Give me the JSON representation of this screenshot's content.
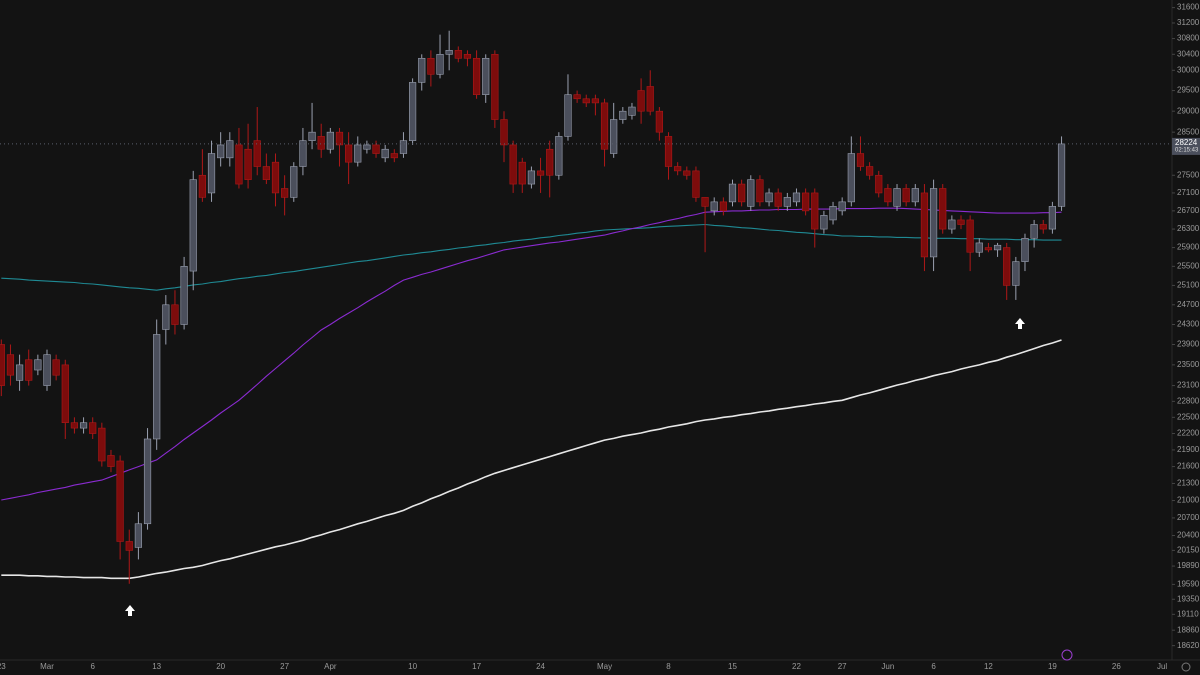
{
  "chart_data": {
    "type": "candlestick",
    "log_scale": true,
    "up_color": "#4b4f5c",
    "up_border": "#9aa0b0",
    "down_color": "#7d0c0c",
    "down_border": "#b01818",
    "ylim": [
      18400,
      31800
    ],
    "yticks": [
      31600,
      31200,
      30800,
      30400,
      30000,
      29500,
      29000,
      28500,
      27500,
      27100,
      26700,
      26300,
      25900,
      25500,
      25100,
      24700,
      24300,
      23900,
      23500,
      23100,
      22800,
      22500,
      22200,
      21900,
      21600,
      21300,
      21000,
      20700,
      20400,
      20150,
      19890,
      19590,
      19350,
      19110,
      18860,
      18620
    ],
    "last_price": 28224,
    "countdown": "02:15:43",
    "categories": [
      "23",
      null,
      null,
      null,
      null,
      "Mar",
      null,
      null,
      null,
      null,
      "6",
      null,
      null,
      null,
      null,
      null,
      null,
      "13",
      null,
      null,
      null,
      null,
      null,
      null,
      "20",
      null,
      null,
      null,
      null,
      null,
      null,
      "27",
      null,
      null,
      null,
      null,
      "Apr",
      null,
      null,
      null,
      null,
      null,
      null,
      null,
      null,
      "10",
      null,
      null,
      null,
      null,
      null,
      null,
      "17",
      null,
      null,
      null,
      null,
      null,
      null,
      "24",
      null,
      null,
      null,
      null,
      null,
      null,
      "May",
      null,
      null,
      null,
      null,
      null,
      null,
      "8",
      null,
      null,
      null,
      null,
      null,
      null,
      "15",
      null,
      null,
      null,
      null,
      null,
      null,
      "22",
      null,
      null,
      null,
      null,
      "27",
      null,
      null,
      null,
      null,
      "Jun",
      null,
      null,
      null,
      null,
      "6",
      null,
      null,
      null,
      null,
      null,
      "12",
      null,
      null,
      null,
      null,
      null,
      null,
      "19",
      null,
      null,
      null,
      null,
      null,
      null,
      "26",
      null,
      null,
      null,
      null,
      "Jul"
    ],
    "open": [
      23900,
      23700,
      23200,
      23600,
      23400,
      23100,
      23600,
      23500,
      22400,
      22300,
      22400,
      22300,
      21800,
      21700,
      20300,
      20200,
      20600,
      22100,
      24200,
      24700,
      24300,
      25400,
      27500,
      27100,
      27900,
      27900,
      28200,
      28100,
      28300,
      27700,
      27800,
      27200,
      27000,
      27700,
      28300,
      28400,
      28100,
      28500,
      28200,
      27800,
      28100,
      28200,
      27900,
      28000,
      28000,
      28300,
      29700,
      30300,
      29900,
      30400,
      30500,
      30400,
      30300,
      29400,
      30400,
      28800,
      28200,
      27800,
      27300,
      27600,
      28100,
      27500,
      28400,
      29400,
      29300,
      29300,
      29200,
      28000,
      28800,
      28900,
      29500,
      29600,
      29000,
      28400,
      27700,
      27600,
      27600,
      27000,
      26700,
      26900,
      26900,
      27300,
      26800,
      27400,
      26900,
      27100,
      26800,
      26900,
      27100,
      27100,
      26300,
      26500,
      26700,
      26900,
      28000,
      27700,
      27500,
      27200,
      26800,
      27200,
      26900,
      27100,
      25700,
      27200,
      26300,
      26500,
      26500,
      25800,
      25900,
      25850,
      25900,
      25100,
      25600,
      26100,
      26400,
      26300,
      26800,
      null,
      null,
      null,
      null,
      null,
      null,
      null,
      null,
      null,
      null,
      null
    ],
    "high": [
      24000,
      23900,
      23700,
      23800,
      23700,
      23800,
      23700,
      23600,
      22500,
      22500,
      22500,
      22400,
      21900,
      21800,
      20500,
      20800,
      22300,
      24400,
      24900,
      25000,
      25700,
      27600,
      28100,
      28300,
      28500,
      28500,
      28600,
      28700,
      29100,
      28000,
      28000,
      27500,
      27800,
      28600,
      29200,
      28700,
      28600,
      28600,
      28500,
      28400,
      28300,
      28300,
      28200,
      28100,
      28500,
      29800,
      30400,
      30500,
      30900,
      31000,
      30600,
      30500,
      30500,
      30400,
      30500,
      29000,
      28300,
      27900,
      27700,
      27900,
      28300,
      28500,
      29900,
      29500,
      29400,
      29400,
      29300,
      29200,
      29100,
      29200,
      29800,
      30000,
      29100,
      28500,
      27800,
      27700,
      27700,
      27000,
      27000,
      27000,
      27400,
      27400,
      27500,
      27500,
      27200,
      27200,
      27100,
      27200,
      27200,
      27200,
      26700,
      26900,
      27000,
      28400,
      28400,
      27800,
      27600,
      27300,
      27300,
      27300,
      27300,
      27300,
      27400,
      27300,
      26600,
      26600,
      26600,
      26100,
      26000,
      26000,
      26000,
      25700,
      26200,
      26500,
      26500,
      26900,
      28400,
      null,
      null,
      null,
      null,
      null,
      null,
      null,
      null,
      null,
      null,
      null
    ],
    "low": [
      22900,
      23100,
      23000,
      23100,
      23300,
      23000,
      23200,
      22100,
      22200,
      22200,
      22100,
      21600,
      21500,
      20000,
      19600,
      20000,
      20500,
      21900,
      23900,
      24100,
      24200,
      25000,
      26900,
      26900,
      27700,
      27700,
      27200,
      27200,
      27500,
      27300,
      26800,
      26600,
      26900,
      27500,
      28100,
      27900,
      28000,
      27700,
      27300,
      27700,
      28000,
      27900,
      27800,
      27800,
      27900,
      28200,
      29500,
      29600,
      29800,
      30000,
      30200,
      30100,
      29300,
      29200,
      28600,
      27800,
      27100,
      27100,
      27200,
      27100,
      27000,
      27400,
      28300,
      29200,
      29100,
      28900,
      27700,
      27900,
      28700,
      28800,
      28700,
      28900,
      28300,
      27400,
      27500,
      27400,
      26900,
      25800,
      26600,
      26600,
      26800,
      26800,
      26700,
      26800,
      26800,
      26700,
      26700,
      26800,
      26600,
      25900,
      26200,
      26400,
      26600,
      26800,
      27600,
      27400,
      27000,
      26800,
      26700,
      26800,
      26800,
      25400,
      25400,
      26200,
      26200,
      26300,
      25400,
      25700,
      25800,
      25700,
      24800,
      24800,
      25400,
      25900,
      26200,
      26200,
      26700,
      null,
      null,
      null,
      null,
      null,
      null,
      null,
      null,
      null,
      null,
      null
    ],
    "close": [
      23100,
      23300,
      23500,
      23200,
      23600,
      23700,
      23300,
      22400,
      22300,
      22400,
      22200,
      21700,
      21600,
      20300,
      20150,
      20600,
      22100,
      24100,
      24700,
      24300,
      25500,
      27400,
      27000,
      28000,
      28200,
      28300,
      27300,
      27400,
      27700,
      27400,
      27100,
      27000,
      27700,
      28300,
      28500,
      28100,
      28500,
      28200,
      27800,
      28200,
      28200,
      28000,
      28100,
      27900,
      28300,
      29700,
      30300,
      29900,
      30400,
      30500,
      30300,
      30300,
      29400,
      30300,
      28800,
      28200,
      27300,
      27300,
      27600,
      27500,
      27500,
      28400,
      29400,
      29300,
      29200,
      29200,
      28100,
      28800,
      29000,
      29100,
      29000,
      29000,
      28500,
      27700,
      27600,
      27500,
      27000,
      26800,
      26900,
      26700,
      27300,
      26900,
      27400,
      26900,
      27100,
      26800,
      27000,
      27100,
      26700,
      26300,
      26600,
      26800,
      26900,
      28000,
      27700,
      27500,
      27100,
      26900,
      27200,
      26900,
      27200,
      25700,
      27200,
      26300,
      26500,
      26400,
      25800,
      26000,
      25850,
      25950,
      25100,
      25600,
      26100,
      26400,
      26300,
      26800,
      28224,
      null,
      null,
      null,
      null,
      null,
      null,
      null,
      null,
      null,
      null,
      null
    ],
    "series": [
      {
        "color": "#e6e6e6",
        "values": [
          19740,
          19740,
          19740,
          19730,
          19730,
          19720,
          19720,
          19710,
          19710,
          19700,
          19700,
          19700,
          19690,
          19690,
          19690,
          19710,
          19740,
          19770,
          19790,
          19820,
          19850,
          19870,
          19900,
          19940,
          19980,
          20010,
          20050,
          20090,
          20130,
          20170,
          20210,
          20240,
          20280,
          20320,
          20370,
          20410,
          20460,
          20500,
          20550,
          20600,
          20640,
          20690,
          20740,
          20780,
          20830,
          20900,
          20960,
          21030,
          21090,
          21160,
          21220,
          21290,
          21350,
          21420,
          21480,
          21530,
          21580,
          21630,
          21680,
          21730,
          21780,
          21830,
          21880,
          21930,
          21980,
          22030,
          22080,
          22110,
          22150,
          22180,
          22210,
          22250,
          22280,
          22320,
          22350,
          22380,
          22420,
          22450,
          22470,
          22500,
          22520,
          22550,
          22570,
          22600,
          22620,
          22650,
          22670,
          22700,
          22720,
          22750,
          22770,
          22800,
          22820,
          22870,
          22920,
          22960,
          23010,
          23060,
          23110,
          23150,
          23200,
          23240,
          23290,
          23330,
          23370,
          23420,
          23460,
          23500,
          23550,
          23590,
          23650,
          23700,
          23760,
          23820,
          23880,
          23930,
          23990,
          null,
          null,
          null,
          null,
          null,
          null,
          null,
          null,
          null,
          null,
          null
        ]
      },
      {
        "color": "#1f8a94",
        "values": [
          25250,
          25240,
          25230,
          25210,
          25200,
          25190,
          25180,
          25170,
          25160,
          25140,
          25130,
          25110,
          25090,
          25070,
          25050,
          25040,
          25020,
          25000,
          25030,
          25050,
          25080,
          25110,
          25130,
          25160,
          25180,
          25210,
          25240,
          25260,
          25290,
          25310,
          25340,
          25370,
          25390,
          25420,
          25450,
          25480,
          25510,
          25540,
          25570,
          25600,
          25620,
          25650,
          25680,
          25710,
          25740,
          25760,
          25790,
          25810,
          25840,
          25860,
          25890,
          25910,
          25940,
          25960,
          25990,
          26010,
          26040,
          26060,
          26080,
          26110,
          26130,
          26160,
          26180,
          26210,
          26230,
          26260,
          26280,
          26290,
          26300,
          26310,
          26320,
          26330,
          26350,
          26360,
          26370,
          26380,
          26390,
          26400,
          26380,
          26370,
          26350,
          26330,
          26320,
          26300,
          26280,
          26270,
          26250,
          26230,
          26220,
          26200,
          26180,
          26170,
          26150,
          26150,
          26140,
          26140,
          26130,
          26130,
          26120,
          26120,
          26110,
          26110,
          26100,
          26100,
          26100,
          26090,
          26090,
          26090,
          26080,
          26080,
          26080,
          26070,
          26070,
          26070,
          26060,
          26060,
          26060,
          null,
          null,
          null,
          null,
          null,
          null,
          null,
          null,
          null,
          null,
          null
        ]
      },
      {
        "color": "#8a2bd0",
        "values": [
          21010,
          21040,
          21070,
          21100,
          21140,
          21170,
          21200,
          21230,
          21270,
          21300,
          21330,
          21360,
          21420,
          21480,
          21540,
          21600,
          21660,
          21720,
          21840,
          21960,
          22090,
          22210,
          22330,
          22450,
          22580,
          22700,
          22820,
          22970,
          23120,
          23280,
          23430,
          23580,
          23730,
          23890,
          24040,
          24190,
          24300,
          24420,
          24530,
          24640,
          24760,
          24870,
          24980,
          25100,
          25210,
          25270,
          25330,
          25380,
          25440,
          25500,
          25560,
          25620,
          25670,
          25730,
          25790,
          25850,
          25880,
          25910,
          25940,
          25970,
          26000,
          26020,
          26050,
          26080,
          26110,
          26140,
          26170,
          26220,
          26260,
          26310,
          26350,
          26400,
          26440,
          26490,
          26530,
          26580,
          26620,
          26670,
          26680,
          26690,
          26700,
          26700,
          26710,
          26720,
          26720,
          26730,
          26730,
          26730,
          26740,
          26740,
          26740,
          26740,
          26750,
          26750,
          26750,
          26750,
          26760,
          26760,
          26760,
          26750,
          26740,
          26730,
          26720,
          26710,
          26700,
          26690,
          26680,
          26670,
          26660,
          26650,
          26650,
          26650,
          26650,
          26650,
          26660,
          26660,
          26670,
          null,
          null,
          null,
          null,
          null,
          null,
          null,
          null,
          null,
          null,
          null
        ]
      }
    ]
  }
}
